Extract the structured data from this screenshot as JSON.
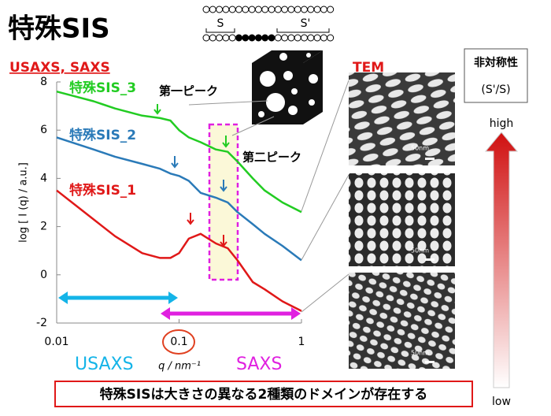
{
  "slide": {
    "title": "特殊SIS",
    "chain_s": "S",
    "chain_s2": "S'",
    "tem": "TEM",
    "asym_title": "非対称性",
    "asym_ratio": "(S'/S)",
    "high": "high",
    "low": "low",
    "scale_bar": "50nm",
    "usaxs_range": "USAXS",
    "saxs_range": "SAXS",
    "footer": "特殊SISは大きさの異なる2種類のドメインが存在する"
  },
  "chart_data": {
    "type": "line",
    "title": "USAXS, SAXS",
    "x_label": "q / nm⁻¹",
    "y_label": "log [ I (q) / a.u.]",
    "annotations": [
      "第一ピーク",
      "第二ピーク"
    ],
    "xscale": "log",
    "xlim": [
      0.01,
      1
    ],
    "xticks": [
      0.01,
      0.1,
      1
    ],
    "ylim": [
      -2,
      8
    ],
    "yticks": [
      -2,
      0,
      2,
      4,
      6,
      8
    ],
    "x": [
      0.01,
      0.02,
      0.03,
      0.05,
      0.07,
      0.085,
      0.1,
      0.12,
      0.15,
      0.2,
      0.25,
      0.3,
      0.4,
      0.5,
      0.7,
      1
    ],
    "series": [
      {
        "name": "特殊SIS_3",
        "color": "#22cc22",
        "values": [
          7.6,
          7.2,
          6.9,
          6.6,
          6.5,
          6.4,
          6.0,
          5.7,
          5.5,
          5.2,
          5.1,
          4.7,
          4.0,
          3.5,
          3.0,
          2.6
        ]
      },
      {
        "name": "特殊SIS_2",
        "color": "#2a7ab8",
        "values": [
          5.7,
          5.2,
          4.9,
          4.6,
          4.4,
          4.2,
          4.1,
          3.9,
          3.4,
          3.2,
          3.0,
          2.6,
          2.1,
          1.7,
          1.2,
          0.6
        ]
      },
      {
        "name": "特殊SIS_1",
        "color": "#e01818",
        "values": [
          3.5,
          2.3,
          1.6,
          0.9,
          0.7,
          0.7,
          0.9,
          1.5,
          1.7,
          1.3,
          1.1,
          0.6,
          -0.3,
          -0.6,
          -1.1,
          -1.5
        ]
      }
    ]
  }
}
